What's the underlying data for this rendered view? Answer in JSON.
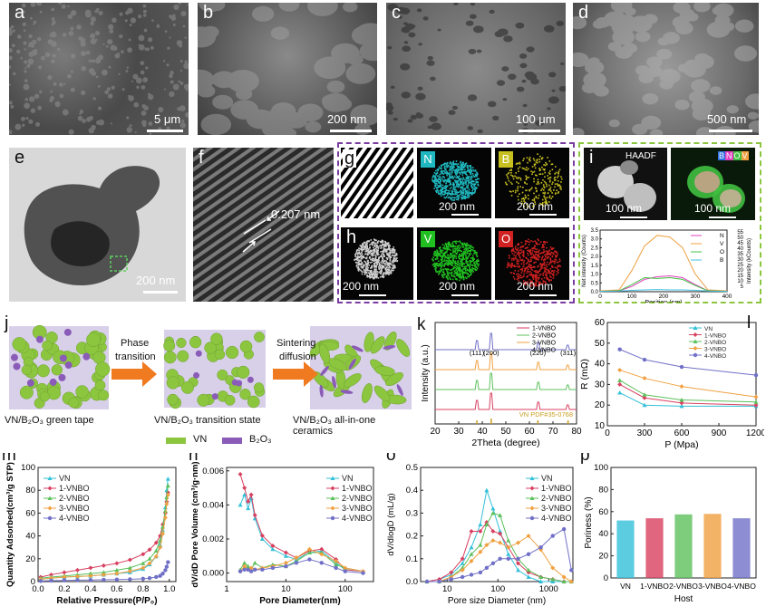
{
  "panels": {
    "a": {
      "label": "a",
      "scale": "5 μm"
    },
    "b": {
      "label": "b",
      "scale": "200 nm"
    },
    "c": {
      "label": "c",
      "scale": "100 μm"
    },
    "d": {
      "label": "d",
      "scale": "500 nm"
    },
    "e": {
      "label": "e",
      "scale": "200 nm"
    },
    "f": {
      "label": "f",
      "d_spacing": "0.207 nm"
    },
    "g": {
      "label": "g"
    },
    "h": {
      "label": "h"
    },
    "i": {
      "label": "i",
      "haadf": "HAADF",
      "legend_boxes": [
        "B",
        "N",
        "O",
        "V"
      ]
    },
    "j": {
      "label": "j"
    },
    "k": {
      "label": "k"
    },
    "l": {
      "label": "l"
    },
    "m": {
      "label": "m"
    },
    "n": {
      "label": "n"
    },
    "o": {
      "label": "o"
    },
    "p": {
      "label": "p"
    }
  },
  "eds_maps": [
    {
      "element": "N",
      "scale": "200 nm",
      "color": "#20b8c0"
    },
    {
      "element": "B",
      "scale": "200 nm",
      "color": "#c8c020"
    },
    {
      "element": "V",
      "scale": "200 nm",
      "color": "#20c020"
    },
    {
      "element": "O",
      "scale": "200 nm",
      "color": "#d02020"
    }
  ],
  "h_scale": "200 nm",
  "i_scales": [
    "100 nm",
    "100 nm"
  ],
  "schematic": {
    "step1_caption": "VN/B₂O₃ green tape",
    "step2_caption": "VN/B₂O₃ transition state",
    "step3_caption": "VN/B₂O₃ all-in-one ceramics",
    "arrow1_line1": "Phase",
    "arrow1_line2": "transition",
    "arrow2_line1": "Sintering",
    "arrow2_line2": "diffusion",
    "legend_vn": "VN",
    "legend_b2o3": "B₂O₃",
    "vn_color": "#8cc63f",
    "b2o3_color": "#8a5cb8"
  },
  "colors": {
    "VN": "#33c0d8",
    "1-VNBO": "#d84060",
    "2-VNBO": "#5cc05c",
    "3-VNBO": "#f0a040",
    "4-VNBO": "#7070c8"
  },
  "chart_data": [
    {
      "id": "i-linescan",
      "type": "line",
      "xlabel": "Position (nm)",
      "ylabel": "Net intensity (Counts)",
      "y2label": "Intensity (kCounts)",
      "xlim": [
        0,
        400
      ],
      "ylim": [
        0,
        3.5
      ],
      "xticks": [
        0,
        100,
        200,
        300,
        400
      ],
      "yticks": [
        0.0,
        0.5,
        1.0,
        1.5,
        2.0,
        2.5,
        3.0,
        3.5
      ],
      "series": [
        {
          "name": "N",
          "color": "#e040c0",
          "x": [
            0,
            60,
            100,
            140,
            180,
            220,
            260,
            300,
            340,
            400
          ],
          "values": [
            0.02,
            0.05,
            0.3,
            0.7,
            0.85,
            0.9,
            0.8,
            0.4,
            0.05,
            0.02
          ]
        },
        {
          "name": "V",
          "color": "#f0a040",
          "x": [
            0,
            60,
            100,
            140,
            180,
            220,
            260,
            300,
            340,
            400
          ],
          "values": [
            0.05,
            0.1,
            1.2,
            2.6,
            3.2,
            3.1,
            2.5,
            1.0,
            0.1,
            0.05
          ]
        },
        {
          "name": "O",
          "color": "#40c040",
          "x": [
            0,
            60,
            100,
            140,
            180,
            220,
            260,
            300,
            340,
            400
          ],
          "values": [
            0.02,
            0.05,
            0.4,
            0.8,
            0.75,
            0.8,
            0.7,
            0.35,
            0.05,
            0.02
          ]
        },
        {
          "name": "B",
          "color": "#40c0e0",
          "x": [
            0,
            60,
            100,
            140,
            180,
            220,
            260,
            300,
            340,
            400
          ],
          "values": [
            0.02,
            0.04,
            0.08,
            0.1,
            0.12,
            0.1,
            0.1,
            0.08,
            0.04,
            0.02
          ]
        }
      ],
      "y2ticks": [
        5,
        10,
        15,
        20,
        25,
        30,
        35,
        40,
        45,
        50,
        55
      ]
    },
    {
      "id": "k-xrd",
      "type": "line",
      "xlabel": "2Theta (degree)",
      "ylabel": "Intensity (a.u.)",
      "xlim": [
        20,
        80
      ],
      "xticks": [
        20,
        30,
        40,
        50,
        60,
        70,
        80
      ],
      "peaks": {
        "x": [
          37.7,
          43.8,
          63.6,
          76.4
        ],
        "labels": [
          "(111)",
          "(200)",
          "(220)",
          "(311)"
        ]
      },
      "reference": "VN PDF#35-0768",
      "series": [
        {
          "name": "1-VNBO",
          "color": "#d84060"
        },
        {
          "name": "2-VNBO",
          "color": "#5cc05c"
        },
        {
          "name": "3-VNBO",
          "color": "#f0a040"
        },
        {
          "name": "4-VNBO",
          "color": "#7070c8"
        }
      ],
      "legend_order": [
        "1-VNBO",
        "2-VNBO",
        "3-VNBO",
        "4-VNBO"
      ]
    },
    {
      "id": "l-resistance",
      "type": "line",
      "xlabel": "P (Mpa)",
      "ylabel": "R (mΩ)",
      "xlim": [
        0,
        1200
      ],
      "ylim": [
        10,
        60
      ],
      "xticks": [
        0,
        300,
        600,
        900,
        1200
      ],
      "yticks": [
        10,
        20,
        30,
        40,
        50,
        60
      ],
      "x": [
        100,
        300,
        600,
        1200
      ],
      "series": [
        {
          "name": "VN",
          "values": [
            26,
            20,
            19.5,
            19.5
          ]
        },
        {
          "name": "1-VNBO",
          "values": [
            30,
            23.5,
            21,
            20
          ]
        },
        {
          "name": "2-VNBO",
          "values": [
            32,
            25,
            22.5,
            21.5
          ]
        },
        {
          "name": "3-VNBO",
          "values": [
            37,
            33,
            29,
            24
          ]
        },
        {
          "name": "4-VNBO",
          "values": [
            47,
            42,
            38.5,
            34.5
          ]
        }
      ]
    },
    {
      "id": "m-isotherm",
      "type": "line",
      "xlabel": "Relative Pressure(P/P₀)",
      "ylabel": "Quantity Adsorbed(cm³/g STP)",
      "xlim": [
        0,
        1.05
      ],
      "ylim": [
        0,
        100
      ],
      "xticks": [
        0.0,
        0.2,
        0.4,
        0.6,
        0.8,
        1.0
      ],
      "yticks": [
        0,
        20,
        40,
        60,
        80,
        100
      ],
      "x": [
        0.02,
        0.1,
        0.2,
        0.3,
        0.4,
        0.5,
        0.6,
        0.7,
        0.8,
        0.85,
        0.9,
        0.93,
        0.95,
        0.97,
        0.98,
        0.99
      ],
      "series": [
        {
          "name": "VN",
          "values": [
            2,
            3,
            4,
            4.5,
            5,
            6,
            7,
            8,
            11,
            15,
            22,
            32,
            45,
            65,
            80,
            90
          ]
        },
        {
          "name": "1-VNBO",
          "values": [
            4,
            6,
            8,
            10,
            12,
            14,
            16,
            19,
            24,
            28,
            34,
            40,
            50,
            60,
            70,
            78
          ]
        },
        {
          "name": "2-VNBO",
          "values": [
            3,
            4,
            5,
            6,
            7,
            8,
            10,
            12,
            16,
            20,
            27,
            36,
            48,
            62,
            74,
            84
          ]
        },
        {
          "name": "3-VNBO",
          "values": [
            2,
            3,
            4,
            4.5,
            5,
            6,
            7,
            9,
            12,
            16,
            22,
            30,
            42,
            56,
            68,
            76
          ]
        },
        {
          "name": "4-VNBO",
          "values": [
            0.5,
            0.8,
            1,
            1.2,
            1.4,
            1.6,
            1.8,
            2,
            2.5,
            3,
            4,
            5,
            7,
            10,
            13,
            17
          ]
        }
      ]
    },
    {
      "id": "n-bjh",
      "type": "line",
      "xlabel": "Pore Diameter(nm)",
      "ylabel": "dV/dD Pore Volume (cm³/g·nm)",
      "xscale": "log",
      "xlim": [
        1,
        300
      ],
      "ylim": [
        -0.0005,
        0.0062
      ],
      "xticks": [
        1,
        10,
        100
      ],
      "yticks": [
        0.0,
        0.002,
        0.004,
        0.006
      ],
      "x": [
        1.7,
        2,
        2.3,
        2.6,
        3,
        4,
        6,
        10,
        15,
        25,
        40,
        70,
        100,
        200
      ],
      "series": [
        {
          "name": "VN",
          "values": [
            0.004,
            0.0046,
            0.0038,
            0.0044,
            0.0032,
            0.002,
            0.0014,
            0.001,
            0.0008,
            0.0012,
            0.0013,
            0.0006,
            0.0002,
            0.0001
          ]
        },
        {
          "name": "1-VNBO",
          "values": [
            0.0058,
            0.005,
            0.0042,
            0.0046,
            0.0034,
            0.0022,
            0.0016,
            0.0012,
            0.0009,
            0.0013,
            0.0014,
            0.0008,
            0.0002,
            0.0001
          ]
        },
        {
          "name": "2-VNBO",
          "values": [
            0.0002,
            0.0006,
            0.0004,
            0.0002,
            0.0006,
            0.0003,
            0.0005,
            0.0004,
            0.0007,
            0.0012,
            0.0012,
            0.0005,
            0.0003,
            0.0001
          ]
        },
        {
          "name": "3-VNBO",
          "values": [
            0.0001,
            0.0004,
            0.0002,
            0.0003,
            0.0002,
            0.0003,
            0.0004,
            0.0006,
            0.0009,
            0.0014,
            0.0011,
            0.0007,
            0.0003,
            0.0001
          ]
        },
        {
          "name": "4-VNBO",
          "values": [
            0.0001,
            0.0002,
            0.0002,
            0.0001,
            0.0002,
            0.0002,
            0.0003,
            0.0004,
            0.0006,
            0.0008,
            0.0006,
            0.0003,
            0.0001,
            0.0
          ]
        }
      ]
    },
    {
      "id": "o-nldft",
      "type": "line",
      "xlabel": "Pore size Diameter (nm)",
      "ylabel": "dV/dlogD (mL/g)",
      "xscale": "log",
      "xlim": [
        3,
        3000
      ],
      "ylim": [
        0,
        0.5
      ],
      "xticks": [
        10,
        100,
        1000
      ],
      "yticks": [
        0.0,
        0.1,
        0.2,
        0.3,
        0.4,
        0.5
      ],
      "x": [
        4,
        7,
        12,
        20,
        30,
        45,
        60,
        80,
        110,
        160,
        250,
        400,
        700,
        1200,
        2000,
        2800
      ],
      "series": [
        {
          "name": "VN",
          "values": [
            0.0,
            0.01,
            0.03,
            0.08,
            0.15,
            0.25,
            0.4,
            0.32,
            0.22,
            0.12,
            0.05,
            0.02,
            0.0,
            0.0,
            0.0,
            0.0
          ]
        },
        {
          "name": "1-VNBO",
          "values": [
            0.0,
            0.01,
            0.04,
            0.1,
            0.22,
            0.22,
            0.26,
            0.22,
            0.21,
            0.15,
            0.08,
            0.04,
            0.02,
            0.01,
            0.0,
            0.0
          ]
        },
        {
          "name": "2-VNBO",
          "values": [
            0.0,
            0.0,
            0.02,
            0.06,
            0.12,
            0.16,
            0.25,
            0.3,
            0.29,
            0.18,
            0.1,
            0.05,
            0.02,
            0.01,
            0.0,
            0.0
          ]
        },
        {
          "name": "3-VNBO",
          "values": [
            0.0,
            0.0,
            0.02,
            0.05,
            0.09,
            0.13,
            0.16,
            0.18,
            0.17,
            0.15,
            0.17,
            0.2,
            0.14,
            0.06,
            0.02,
            0.0
          ]
        },
        {
          "name": "4-VNBO",
          "values": [
            0.0,
            0.0,
            0.01,
            0.02,
            0.03,
            0.04,
            0.06,
            0.08,
            0.1,
            0.1,
            0.1,
            0.12,
            0.15,
            0.2,
            0.23,
            0.05
          ]
        }
      ]
    },
    {
      "id": "p-porosity",
      "type": "bar",
      "xlabel": "Host",
      "ylabel": "Poriness (%)",
      "ylim": [
        0,
        100
      ],
      "yticks": [
        0,
        20,
        40,
        60,
        80,
        100
      ],
      "categories": [
        "VN",
        "1-VNBO",
        "2-VNBO",
        "3-VNBO",
        "4-VNBO"
      ],
      "values": [
        52,
        54,
        57.5,
        58,
        54
      ]
    }
  ]
}
